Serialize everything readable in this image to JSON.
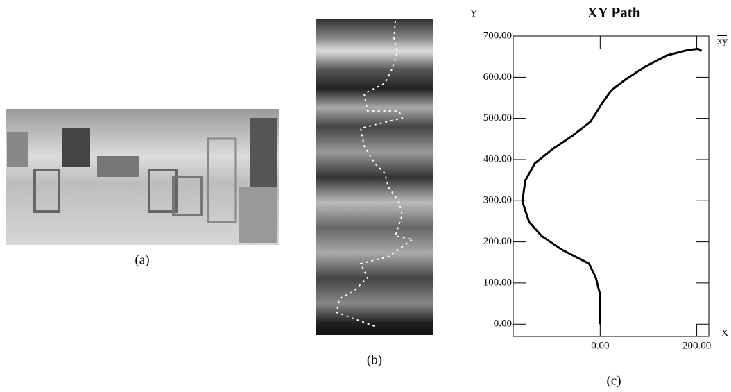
{
  "panels": [
    {
      "caption": "(a)"
    },
    {
      "caption": "(b)"
    },
    {
      "caption": "(c)"
    }
  ],
  "chart_data": {
    "type": "line",
    "title": "XY Path",
    "x_label": "X",
    "y_label": "Y",
    "series": [
      {
        "name": "xy",
        "color": "#000000",
        "x": [
          0,
          0,
          -9,
          -23,
          -78,
          -121,
          -147,
          -161,
          -155,
          -135,
          -99,
          -56,
          -20,
          3,
          23,
          52,
          95,
          138,
          181,
          203,
          210
        ],
        "values": [
          0,
          71,
          113,
          147,
          180,
          214,
          248,
          298,
          349,
          391,
          425,
          459,
          492,
          535,
          568,
          594,
          627,
          653,
          666,
          669,
          664
        ]
      }
    ],
    "xlim": [
      -180,
      225
    ],
    "ylim": [
      -30,
      700
    ],
    "xticks": [
      {
        "value": 0,
        "label": "0.00"
      },
      {
        "value": 200,
        "label": "200.00"
      }
    ],
    "yticks": [
      {
        "value": 0,
        "label": "0.00"
      },
      {
        "value": 100,
        "label": "100.00"
      },
      {
        "value": 200,
        "label": "200.00"
      },
      {
        "value": 300,
        "label": "300.00"
      },
      {
        "value": 400,
        "label": "400.00"
      },
      {
        "value": 500,
        "label": "500.00"
      },
      {
        "value": 600,
        "label": "600.00"
      },
      {
        "value": 700,
        "label": "700.00"
      }
    ],
    "grid": false,
    "legend": "upper right"
  }
}
